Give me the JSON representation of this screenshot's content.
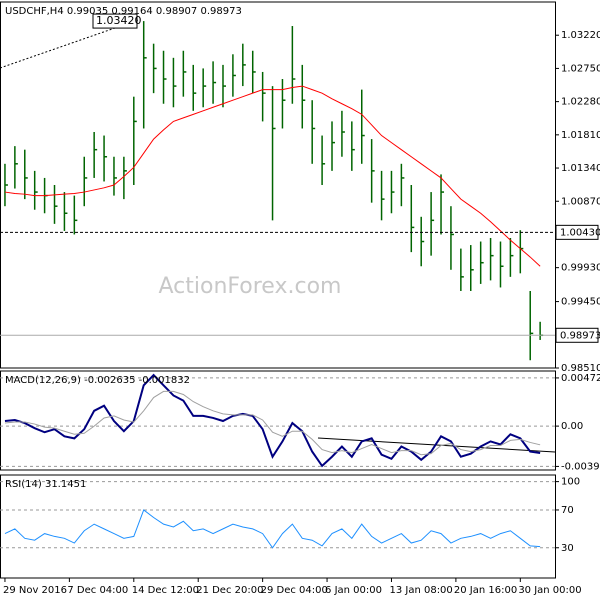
{
  "chart_data": [
    {
      "type": "ohlc",
      "title": "USDCHF,H4  0.99035 0.99164 0.98907 0.98973",
      "watermark": "ActionForex.com",
      "xlim": [
        -0.5,
        55.5
      ],
      "ylim": [
        0.9851,
        1.0369
      ],
      "yticks": [
        {
          "value": 1.0322,
          "label": "1.03220"
        },
        {
          "value": 1.0275,
          "label": "1.02750"
        },
        {
          "value": 1.0228,
          "label": "1.02280"
        },
        {
          "value": 1.0181,
          "label": "1.01810"
        },
        {
          "value": 1.0134,
          "label": "1.01340"
        },
        {
          "value": 1.0087,
          "label": "1.00870"
        },
        {
          "value": 0.9993,
          "label": "0.99930"
        },
        {
          "value": 0.9945,
          "label": "0.99450"
        },
        {
          "value": 0.9851,
          "label": "0.98510"
        }
      ],
      "grid": false,
      "ohlc": {
        "color": "#006400",
        "high": [
          1.014,
          1.0165,
          1.016,
          1.013,
          1.012,
          1.011,
          1.01,
          1.0095,
          1.015,
          1.0185,
          1.018,
          1.015,
          1.015,
          1.0235,
          1.0342,
          1.031,
          1.03,
          1.029,
          1.03,
          1.028,
          1.0275,
          1.0285,
          1.028,
          1.0295,
          1.031,
          1.03,
          1.027,
          1.025,
          1.026,
          1.0335,
          1.028,
          1.023,
          1.018,
          1.02,
          1.0215,
          1.02,
          1.0245,
          1.0175,
          1.013,
          1.013,
          1.014,
          1.011,
          1.0065,
          1.01,
          1.0125,
          1.008,
          1.002,
          1.0025,
          1.003,
          1.0035,
          1.003,
          1.0035,
          1.0046,
          0.996,
          0.99164
        ],
        "low": [
          1.008,
          1.0105,
          1.009,
          1.0075,
          1.007,
          1.0055,
          1.0045,
          1.004,
          1.008,
          1.012,
          1.0115,
          1.0095,
          1.009,
          1.011,
          1.019,
          1.024,
          1.0225,
          1.022,
          1.0235,
          1.0215,
          1.022,
          1.0225,
          1.022,
          1.0235,
          1.025,
          1.024,
          1.02,
          1.006,
          1.019,
          1.0225,
          1.019,
          1.014,
          1.011,
          1.013,
          1.015,
          1.013,
          1.014,
          1.0085,
          1.006,
          1.007,
          1.008,
          1.0015,
          0.9995,
          1.001,
          1.004,
          0.999,
          0.996,
          0.996,
          0.997,
          0.9975,
          0.9965,
          0.998,
          0.9985,
          0.9862,
          0.98907
        ],
        "close": [
          1.011,
          1.014,
          1.012,
          1.01,
          1.0095,
          1.008,
          1.007,
          1.006,
          1.012,
          1.016,
          1.015,
          1.012,
          1.013,
          1.02,
          1.029,
          1.0275,
          1.026,
          1.025,
          1.027,
          1.024,
          1.025,
          1.0255,
          1.025,
          1.0265,
          1.028,
          1.027,
          1.024,
          1.019,
          1.023,
          1.026,
          1.023,
          1.019,
          1.014,
          1.017,
          1.0185,
          1.016,
          1.018,
          1.013,
          1.009,
          1.01,
          1.012,
          1.005,
          1.003,
          1.006,
          1.01,
          1.004,
          0.998,
          0.999,
          1.0,
          1.001,
          0.9995,
          1.001,
          1.002,
          0.99,
          0.98973
        ]
      },
      "series": [
        {
          "color": "#ff0000",
          "values": [
            1.01,
            1.0098,
            1.0097,
            1.0095,
            1.0095,
            1.0096,
            1.0097,
            1.0098,
            1.01,
            1.0103,
            1.0106,
            1.011,
            1.0122,
            1.0135,
            1.0155,
            1.0175,
            1.0188,
            1.02,
            1.0205,
            1.021,
            1.0215,
            1.022,
            1.0225,
            1.023,
            1.0235,
            1.024,
            1.0245,
            1.0245,
            1.0245,
            1.0248,
            1.025,
            1.0245,
            1.024,
            1.0232,
            1.0225,
            1.0218,
            1.021,
            1.0195,
            1.018,
            1.017,
            1.016,
            1.015,
            1.014,
            1.013,
            1.012,
            1.0105,
            1.009,
            1.008,
            1.007,
            1.0058,
            1.0045,
            1.0032,
            1.002,
            1.0008,
            0.9995
          ]
        }
      ],
      "annotations": [
        {
          "value": 1.0342,
          "label": "1.03420"
        }
      ],
      "levels": [
        {
          "value": 1.0043,
          "label": "1.00430"
        }
      ],
      "current": {
        "value": 0.98973,
        "label": "0.98973"
      }
    },
    {
      "type": "line",
      "title": "MACD(12,26,9) -0.002635 -0.001832",
      "xlim": [
        -0.5,
        55.5
      ],
      "ylim": [
        -0.0043,
        0.0054
      ],
      "yticks": [
        0.004721,
        {
          "value": 0,
          "label": "0.00"
        },
        -0.003949
      ],
      "grid": true,
      "series": [
        {
          "color": "#000080",
          "values": [
            0.0005,
            0.0006,
            0.0003,
            -0.0002,
            -0.0006,
            -0.0003,
            -0.001,
            -0.0012,
            -0.0003,
            0.0015,
            0.002,
            0.0005,
            -0.0005,
            0.0005,
            0.004,
            0.005,
            0.004,
            0.003,
            0.0025,
            0.001,
            0.001,
            0.0008,
            0.0005,
            0.001,
            0.0012,
            0.001,
            -0.0003,
            -0.003,
            -0.0015,
            0.0003,
            -0.0005,
            -0.0025,
            -0.0039,
            -0.003,
            -0.002,
            -0.003,
            -0.0015,
            -0.0012,
            -0.0028,
            -0.0032,
            -0.002,
            -0.0025,
            -0.0033,
            -0.0025,
            -0.001,
            -0.0015,
            -0.003,
            -0.0027,
            -0.002,
            -0.0015,
            -0.0018,
            -0.0008,
            -0.0012,
            -0.0025,
            -0.002635
          ]
        },
        {
          "color": "#a0a0a0",
          "values": [
            0.0003,
            0.0004,
            0.0004,
            0.0002,
            -0.0001,
            -0.0002,
            -0.0005,
            -0.0008,
            -0.0007,
            0.0,
            0.0008,
            0.001,
            0.0006,
            0.0004,
            0.0015,
            0.0028,
            0.0034,
            0.0034,
            0.0031,
            0.0024,
            0.0019,
            0.0015,
            0.0012,
            0.0011,
            0.0011,
            0.0011,
            0.0006,
            -0.0006,
            -0.001,
            -0.0005,
            -0.0005,
            -0.0013,
            -0.0023,
            -0.0026,
            -0.0024,
            -0.0026,
            -0.0022,
            -0.0018,
            -0.0022,
            -0.0026,
            -0.0024,
            -0.0024,
            -0.0028,
            -0.0027,
            -0.0019,
            -0.0017,
            -0.0023,
            -0.0025,
            -0.0023,
            -0.0019,
            -0.0019,
            -0.0014,
            -0.0013,
            -0.0016,
            -0.001832
          ]
        }
      ]
    },
    {
      "type": "line",
      "title": "RSI(14) 31.1451",
      "xlim": [
        -0.5,
        55.5
      ],
      "ylim": [
        -2,
        107
      ],
      "yticks": [
        100,
        70,
        30
      ],
      "grid": true,
      "xticks": [
        {
          "value": 0,
          "label": "29 Nov 2016"
        },
        {
          "value": 6.5,
          "label": "7 Dec 04:00"
        },
        {
          "value": 13,
          "label": "14 Dec 12:00"
        },
        {
          "value": 19.5,
          "label": "21 Dec 20:00"
        },
        {
          "value": 26,
          "label": "29 Dec 04:00"
        },
        {
          "value": 32.5,
          "label": "6 Jan 00:00"
        },
        {
          "value": 39,
          "label": "13 Jan 08:00"
        },
        {
          "value": 45.5,
          "label": "20 Jan 16:00"
        },
        {
          "value": 52,
          "label": "30 Jan 00:00"
        }
      ],
      "series": [
        {
          "color": "#1e90ff",
          "values": [
            45,
            50,
            40,
            38,
            45,
            42,
            40,
            35,
            48,
            55,
            50,
            45,
            40,
            42,
            70,
            62,
            55,
            52,
            58,
            48,
            50,
            45,
            50,
            55,
            52,
            50,
            45,
            30,
            45,
            55,
            40,
            38,
            32,
            45,
            50,
            40,
            55,
            42,
            35,
            40,
            45,
            35,
            38,
            48,
            45,
            35,
            40,
            42,
            45,
            40,
            45,
            48,
            40,
            32,
            31.1451
          ]
        }
      ]
    }
  ]
}
